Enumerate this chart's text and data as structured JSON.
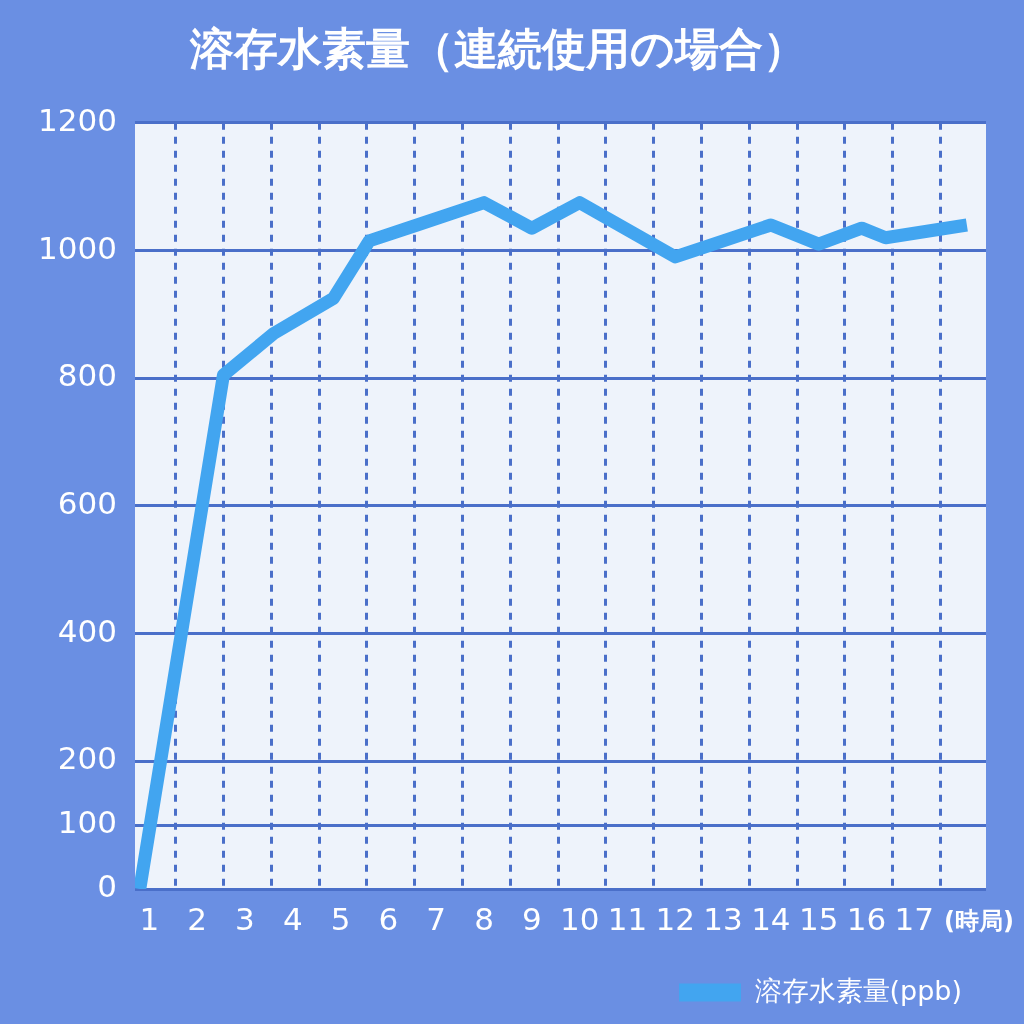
{
  "chart_data": {
    "type": "line",
    "title": "溶存水素量（連続使用の場合）",
    "xlabel": "(時局)",
    "x": [
      0.8,
      2.55,
      3.6,
      4.85,
      5.6,
      6.6,
      8,
      9,
      10,
      12,
      14,
      15,
      15.9,
      16.4,
      18.1
    ],
    "series": [
      {
        "name": "溶存水素量(ppb)",
        "color": "#42a5f0",
        "values": [
          0,
          805,
          870,
          925,
          1015,
          1040,
          1075,
          1035,
          1075,
          990,
          1040,
          1010,
          1035,
          1020,
          1040
        ]
      }
    ],
    "xlim": [
      0.7,
      18.5
    ],
    "xticks": [
      1,
      {
        "value": 1.55,
        "label": null
      },
      2,
      {
        "value": 2.55,
        "label": null
      },
      3,
      {
        "value": 3.55,
        "label": null
      },
      4,
      {
        "value": 4.55,
        "label": null
      },
      5,
      {
        "value": 5.55,
        "label": null
      },
      6,
      {
        "value": 6.55,
        "label": null
      },
      7,
      {
        "value": 7.55,
        "label": null
      },
      8,
      {
        "value": 8.55,
        "label": null
      },
      9,
      {
        "value": 9.55,
        "label": null
      },
      10,
      {
        "value": 10.55,
        "label": null
      },
      11,
      {
        "value": 11.55,
        "label": null
      },
      12,
      {
        "value": 12.55,
        "label": null
      },
      13,
      {
        "value": 13.55,
        "label": null
      },
      14,
      {
        "value": 14.55,
        "label": null
      },
      15,
      {
        "value": 15.55,
        "label": null
      },
      16,
      {
        "value": 16.55,
        "label": null
      },
      17,
      {
        "value": 17.55,
        "label": null
      }
    ],
    "ylim": [
      0,
      1200
    ],
    "yticks": [
      0,
      100,
      200,
      400,
      600,
      800,
      1000,
      1200
    ],
    "grid": true,
    "legend": "bottom right",
    "marker": "none",
    "line_style": "solid"
  }
}
